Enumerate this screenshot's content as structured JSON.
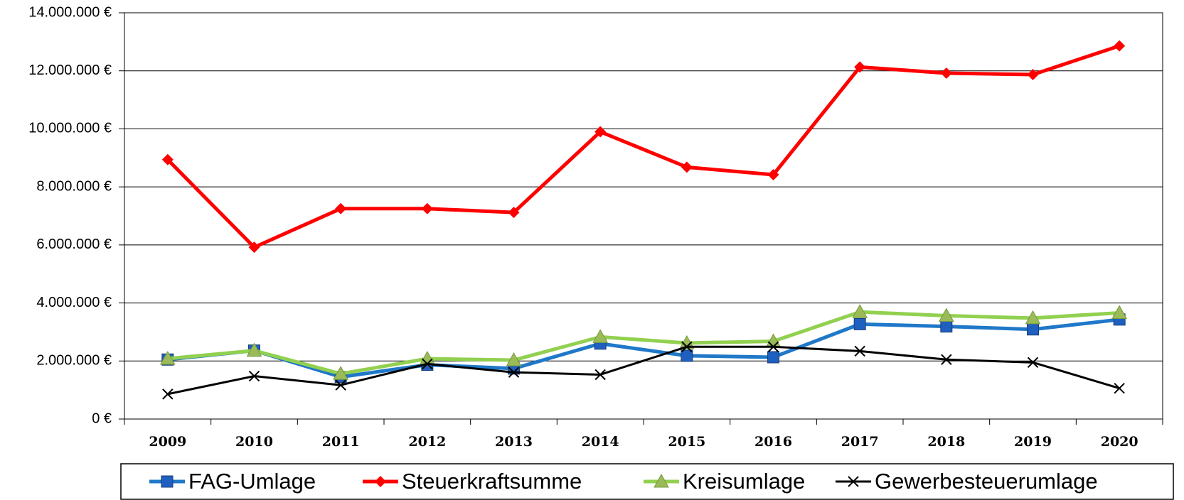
{
  "chart_data": {
    "type": "line",
    "categories": [
      "2009",
      "2010",
      "2011",
      "2012",
      "2013",
      "2014",
      "2015",
      "2016",
      "2017",
      "2018",
      "2019",
      "2020"
    ],
    "series": [
      {
        "name": "FAG-Umlage",
        "color": "#1f78c8",
        "marker": "square",
        "values": [
          2050000,
          2360000,
          1450000,
          1870000,
          1740000,
          2600000,
          2180000,
          2130000,
          3270000,
          3190000,
          3090000,
          3430000
        ]
      },
      {
        "name": "Steuerkraftsumme",
        "color": "#ff0000",
        "marker": "diamond",
        "values": [
          8940000,
          5920000,
          7250000,
          7250000,
          7120000,
          9900000,
          8680000,
          8420000,
          12130000,
          11920000,
          11870000,
          12860000
        ]
      },
      {
        "name": "Kreisumlage",
        "color": "#92d050",
        "marker": "triangle",
        "values": [
          2080000,
          2360000,
          1560000,
          2080000,
          2030000,
          2830000,
          2620000,
          2680000,
          3690000,
          3560000,
          3480000,
          3660000
        ]
      },
      {
        "name": "Gewerbesteuerumlage",
        "color": "#000000",
        "marker": "x",
        "values": [
          860000,
          1480000,
          1170000,
          1900000,
          1610000,
          1530000,
          2490000,
          2490000,
          2340000,
          2050000,
          1950000,
          1060000
        ]
      }
    ],
    "ylim": [
      0,
      14000000
    ],
    "yticks": [
      {
        "value": 0,
        "label": "0 €"
      },
      {
        "value": 2000000,
        "label": "2.000.000 €"
      },
      {
        "value": 4000000,
        "label": "4.000.000 €"
      },
      {
        "value": 6000000,
        "label": "6.000.000 €"
      },
      {
        "value": 8000000,
        "label": "8.000.000 €"
      },
      {
        "value": 10000000,
        "label": "10.000.000 €"
      },
      {
        "value": 12000000,
        "label": "12.000.000 €"
      },
      {
        "value": 14000000,
        "label": "14.000.000 €"
      }
    ],
    "grid": true,
    "legend": "bottom"
  }
}
